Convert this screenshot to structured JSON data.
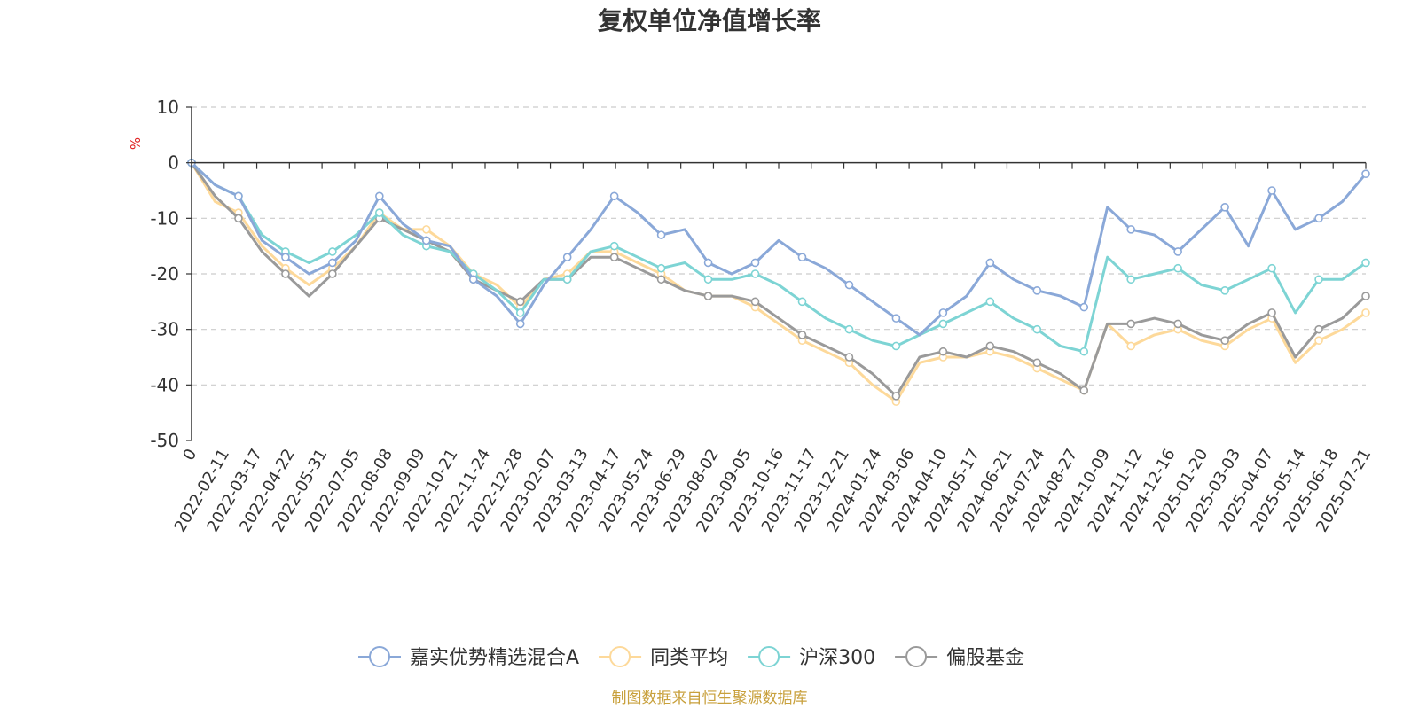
{
  "chart_data": {
    "type": "line",
    "title": "复权单位净值增长率",
    "ylabel": "%",
    "ylim": [
      -50,
      10
    ],
    "yticks": [
      10,
      0,
      -10,
      -20,
      -30,
      -40,
      -50
    ],
    "x_tick_labels": [
      "0",
      "2022-02-11",
      "2022-03-17",
      "2022-04-22",
      "2022-05-31",
      "2022-07-05",
      "2022-08-08",
      "2022-09-09",
      "2022-10-21",
      "2022-11-24",
      "2022-12-28",
      "2023-02-07",
      "2023-03-13",
      "2023-04-17",
      "2023-05-24",
      "2023-06-29",
      "2023-08-02",
      "2023-09-05",
      "2023-10-16",
      "2023-11-17",
      "2023-12-21",
      "2024-01-24",
      "2024-03-06",
      "2024-04-10",
      "2024-05-17",
      "2024-06-21",
      "2024-07-24",
      "2024-08-27",
      "2024-10-09",
      "2024-11-12",
      "2024-12-16",
      "2025-01-20",
      "2025-03-03",
      "2025-04-07",
      "2025-05-14",
      "2025-06-18",
      "2025-07-21"
    ],
    "grid": "horizontal dashed",
    "legend_position": "bottom",
    "source_note": "制图数据来自恒生聚源数据库",
    "series": [
      {
        "name": "嘉实优势精选混合A",
        "color": "#8aa8d8",
        "values": [
          0,
          -4,
          -6,
          -14,
          -17,
          -20,
          -18,
          -14,
          -6,
          -11,
          -14,
          -15,
          -21,
          -24,
          -29,
          -22,
          -17,
          -12,
          -6,
          -9,
          -13,
          -12,
          -18,
          -20,
          -18,
          -14,
          -17,
          -19,
          -22,
          -25,
          -28,
          -31,
          -27,
          -24,
          -18,
          -21,
          -23,
          -24,
          -26,
          -8,
          -12,
          -13,
          -16,
          -12,
          -8,
          -15,
          -5,
          -12,
          -10,
          -7,
          -2
        ]
      },
      {
        "name": "同类平均",
        "color": "#fdd99a",
        "values": [
          0,
          -7,
          -9,
          -15,
          -19,
          -22,
          -19,
          -15,
          -9,
          -12,
          -12,
          -15,
          -20,
          -22,
          -26,
          -21,
          -20,
          -16,
          -16,
          -18,
          -20,
          -23,
          -24,
          -24,
          -26,
          -29,
          -32,
          -34,
          -36,
          -40,
          -43,
          -36,
          -35,
          -35,
          -34,
          -35,
          -37,
          -39,
          -41,
          -29,
          -33,
          -31,
          -30,
          -32,
          -33,
          -30,
          -28,
          -36,
          -32,
          -30,
          -27
        ]
      },
      {
        "name": "沪深300",
        "color": "#7dd4d4",
        "values": [
          0,
          -4,
          -6,
          -13,
          -16,
          -18,
          -16,
          -13,
          -9,
          -13,
          -15,
          -16,
          -20,
          -23,
          -27,
          -21,
          -21,
          -16,
          -15,
          -17,
          -19,
          -18,
          -21,
          -21,
          -20,
          -22,
          -25,
          -28,
          -30,
          -32,
          -33,
          -31,
          -29,
          -27,
          -25,
          -28,
          -30,
          -33,
          -34,
          -17,
          -21,
          -20,
          -19,
          -22,
          -23,
          -21,
          -19,
          -27,
          -21,
          -21,
          -18
        ]
      },
      {
        "name": "偏股基金",
        "color": "#9a9a9a",
        "values": [
          0,
          -6,
          -10,
          -16,
          -20,
          -24,
          -20,
          -15,
          -10,
          -12,
          -14,
          -16,
          -21,
          -23,
          -25,
          -21,
          -21,
          -17,
          -17,
          -19,
          -21,
          -23,
          -24,
          -24,
          -25,
          -28,
          -31,
          -33,
          -35,
          -38,
          -42,
          -35,
          -34,
          -35,
          -33,
          -34,
          -36,
          -38,
          -41,
          -29,
          -29,
          -28,
          -29,
          -31,
          -32,
          -29,
          -27,
          -35,
          -30,
          -28,
          -24
        ]
      }
    ]
  }
}
